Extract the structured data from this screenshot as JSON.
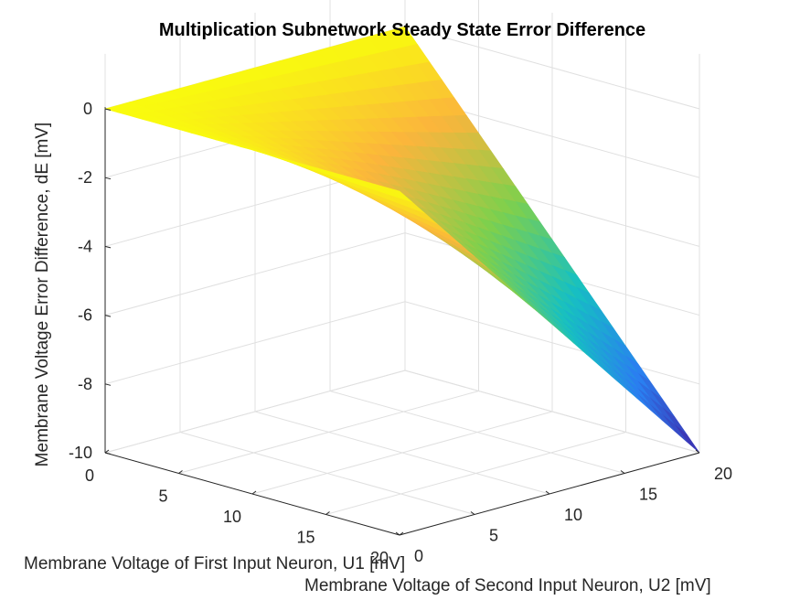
{
  "chart_data": {
    "type": "surface",
    "title": "Multiplication Subnetwork Steady State Error Difference",
    "xlabel": "Membrane Voltage of First Input Neuron, U1 [mV]",
    "ylabel": "Membrane Voltage of Second Input Neuron, U2 [mV]",
    "zlabel": "Membrane Voltage Error Difference, dE [mV]",
    "xlim": [
      0,
      20
    ],
    "ylim": [
      0,
      20
    ],
    "zlim": [
      -10,
      0
    ],
    "x_ticks": [
      "0",
      "5",
      "10",
      "15",
      "20"
    ],
    "y_ticks": [
      "0",
      "5",
      "10",
      "15",
      "20"
    ],
    "z_ticks": [
      "0",
      "-2",
      "-4",
      "-6",
      "-8",
      "-10"
    ],
    "grid": true,
    "colormap": "parula",
    "colors": [
      "#3e26a8",
      "#2a7ff0",
      "#16c0c2",
      "#7fd04c",
      "#fbb53c",
      "#f9fb0e"
    ],
    "grid_x": [
      0,
      2.5,
      5,
      7.5,
      10,
      12.5,
      15,
      17.5,
      20
    ],
    "grid_y": [
      0,
      2.5,
      5,
      7.5,
      10,
      12.5,
      15,
      17.5,
      20
    ],
    "z_formula_description": "dE approximately -U1*U2/40, corner (20,20) ≈ -10",
    "corners": [
      {
        "u1": 0,
        "u2": 0,
        "dE": 0
      },
      {
        "u1": 20,
        "u2": 0,
        "dE": 0
      },
      {
        "u1": 0,
        "u2": 20,
        "dE": 0
      },
      {
        "u1": 20,
        "u2": 20,
        "dE": -10
      }
    ]
  }
}
